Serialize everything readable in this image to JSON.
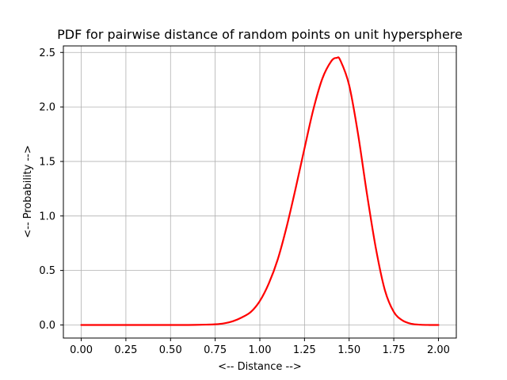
{
  "chart_data": {
    "type": "line",
    "title": "PDF for pairwise distance of random points on unit hypersphere",
    "xlabel": "<-- Distance -->",
    "ylabel": "<-- Probability -->",
    "xlim": [
      -0.1,
      2.1
    ],
    "ylim": [
      -0.12,
      2.56
    ],
    "xticks": [
      0.0,
      0.25,
      0.5,
      0.75,
      1.0,
      1.25,
      1.5,
      1.75,
      2.0
    ],
    "xtick_labels": [
      "0.00",
      "0.25",
      "0.50",
      "0.75",
      "1.00",
      "1.25",
      "1.50",
      "1.75",
      "2.00"
    ],
    "yticks": [
      0.0,
      0.5,
      1.0,
      1.5,
      2.0,
      2.5
    ],
    "ytick_labels": [
      "0.0",
      "0.5",
      "1.0",
      "1.5",
      "2.0",
      "2.5"
    ],
    "grid": true,
    "series": [
      {
        "color": "#ff0000",
        "x": [
          0.0,
          0.25,
          0.5,
          0.6,
          0.7,
          0.75,
          0.8,
          0.85,
          0.9,
          0.95,
          1.0,
          1.05,
          1.1,
          1.15,
          1.2,
          1.25,
          1.3,
          1.35,
          1.4,
          1.43,
          1.45,
          1.5,
          1.55,
          1.6,
          1.65,
          1.7,
          1.75,
          1.8,
          1.85,
          1.9,
          1.95,
          2.0
        ],
        "y": [
          0.0,
          0.0,
          0.0,
          0.0,
          0.003,
          0.006,
          0.015,
          0.035,
          0.07,
          0.12,
          0.22,
          0.38,
          0.6,
          0.9,
          1.25,
          1.62,
          1.98,
          2.26,
          2.42,
          2.45,
          2.43,
          2.2,
          1.75,
          1.2,
          0.7,
          0.32,
          0.12,
          0.04,
          0.01,
          0.002,
          0.0,
          0.0
        ]
      }
    ]
  }
}
